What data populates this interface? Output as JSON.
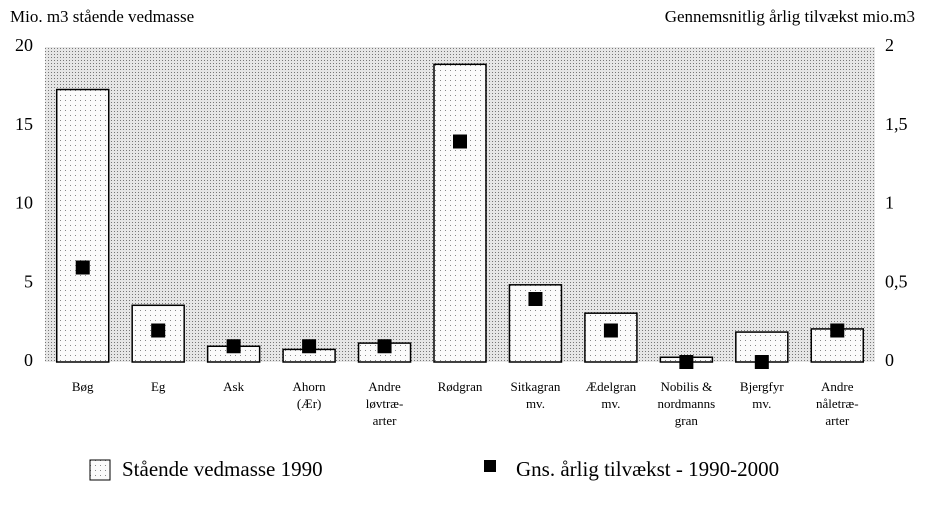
{
  "chart_data": {
    "type": "bar",
    "ylabel": "Mio. m3 stående vedmasse",
    "y2label": "Gennemsnitlig årlig tilvækst mio.m3",
    "categories": [
      [
        "Bøg"
      ],
      [
        "Eg"
      ],
      [
        "Ask"
      ],
      [
        "Ahorn",
        "(Ær)"
      ],
      [
        "Andre",
        "løvtræ-",
        "arter"
      ],
      [
        "Rødgran"
      ],
      [
        "Sitkagran",
        "mv."
      ],
      [
        "Ædelgran",
        "mv."
      ],
      [
        "Nobilis &",
        "nordmanns",
        "gran"
      ],
      [
        "Bjergfyr",
        "mv."
      ],
      [
        "Andre",
        "nåletræ-",
        "arter"
      ]
    ],
    "series": [
      {
        "name": "Stående vedmasse 1990",
        "values": [
          17.3,
          3.6,
          1.0,
          0.8,
          1.2,
          18.9,
          4.9,
          3.1,
          0.3,
          1.9,
          2.1
        ]
      },
      {
        "name": "Gns. årlig tilvækst - 1990-2000",
        "axis": "y2",
        "color": "#000000",
        "values": [
          0.6,
          0.2,
          0.1,
          0.1,
          0.1,
          1.4,
          0.4,
          0.2,
          0.0,
          0.0,
          0.2
        ]
      }
    ],
    "ylim": [
      0,
      20
    ],
    "yticks": [
      0,
      5,
      10,
      15,
      20
    ],
    "y2lim": [
      0,
      2
    ],
    "y2ticks": [
      0,
      {
        "value": 0.5,
        "label": "0,5"
      },
      1,
      {
        "value": 1.5,
        "label": "1,5"
      },
      2
    ]
  }
}
